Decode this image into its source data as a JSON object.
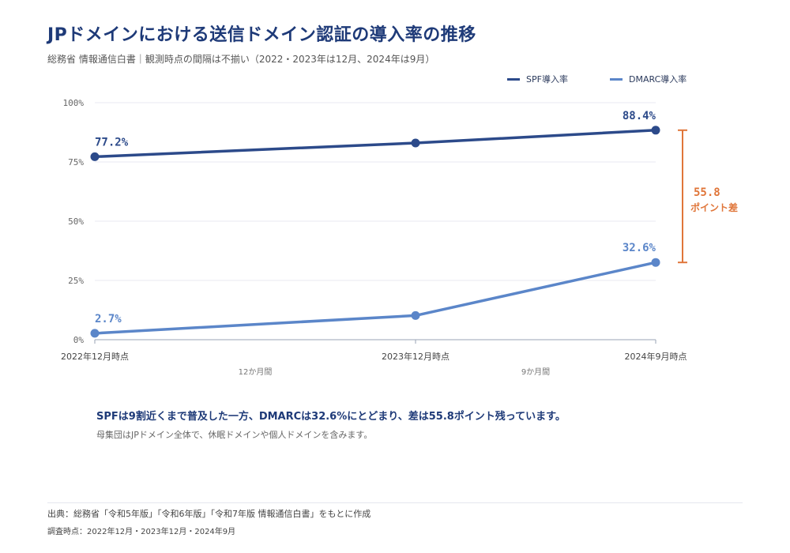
{
  "title": "JPドメインにおける送信ドメイン認証の導入率の推移",
  "subtitle": "総務省 情報通信白書｜観測時点の間隔は不揃い（2022・2023年は12月、2024年は9月）",
  "legend": {
    "spf": "SPF導入率",
    "dmarc": "DMARC導入率"
  },
  "colors": {
    "spf": "#2c4a8a",
    "dmarc": "#5b86c9",
    "gap": "#e0763a"
  },
  "chart_data": {
    "type": "line",
    "categories": [
      "2022年12月時点",
      "2023年12月時点",
      "2024年9月時点"
    ],
    "x": [
      "2022-12",
      "2023-12",
      "2024-09"
    ],
    "y_ticks": [
      "0%",
      "25%",
      "50%",
      "75%",
      "100%"
    ],
    "ylim": [
      0,
      100
    ],
    "series": [
      {
        "name": "SPF導入率",
        "values": [
          77.2,
          83.0,
          88.4
        ],
        "labels": [
          "77.2%",
          "",
          "88.4%"
        ]
      },
      {
        "name": "DMARC導入率",
        "values": [
          2.7,
          10.2,
          32.6
        ],
        "labels": [
          "2.7%",
          "",
          "32.6%"
        ]
      }
    ],
    "intervals": [
      "12か月間",
      "9か月間"
    ],
    "gap_annotation": {
      "value": "55.8",
      "unit": "ポイント差"
    },
    "grid": true
  },
  "insight": "SPFは9割近くまで普及した一方、DMARCは32.6%にとどまり、差は55.8ポイント残っています。",
  "note": "母集団はJPドメイン全体で、休眠ドメインや個人ドメインを含みます。",
  "source": "出典：総務省「令和5年版」「令和6年版」「令和7年版 情報通信白書」をもとに作成",
  "survey": "調査時点：2022年12月・2023年12月・2024年9月"
}
